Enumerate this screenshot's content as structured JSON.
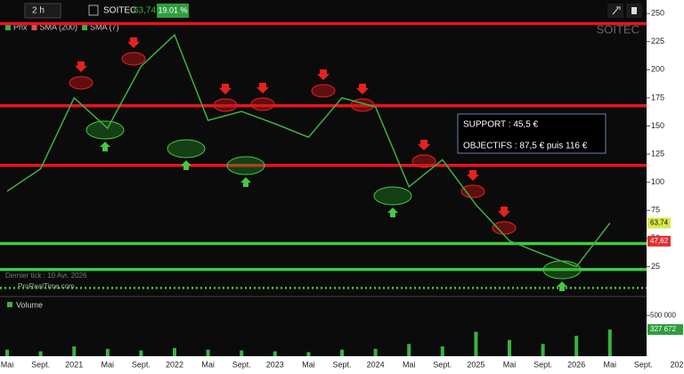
{
  "chart_data": {
    "type": "line",
    "toolbar": {
      "timeframe": "2 h",
      "symbol": "SOITEC",
      "price": "63,74",
      "change": "19.01 %"
    },
    "watermark": "SOITEC",
    "categories": [
      "Mai",
      "Sept.",
      "2021",
      "Mai",
      "Sept.",
      "2022",
      "Mai",
      "Sept.",
      "2023",
      "Mai",
      "Sept.",
      "2024",
      "Mai",
      "Sept.",
      "2025",
      "Mai",
      "Sept.",
      "2026",
      "Mai",
      "Sept.",
      "202"
    ],
    "series": [
      {
        "name": "Prix",
        "color": "#3cb043",
        "values": [
          92,
          112,
          175,
          148,
          203,
          231,
          155,
          163,
          152,
          140,
          175,
          167,
          96,
          120,
          80,
          48,
          36,
          25,
          63.74,
          null,
          null
        ]
      }
    ],
    "indicators": [
      {
        "name": "SMA (200)",
        "color": "#e05050"
      },
      {
        "name": "SMA (7)",
        "color": "#3cb043"
      }
    ],
    "ylim": [
      0,
      262
    ],
    "yticks": [
      250,
      225,
      200,
      175,
      150,
      125,
      100,
      75,
      50,
      25
    ],
    "levels": [
      {
        "value": 241,
        "color": "#e8141c"
      },
      {
        "value": 168,
        "color": "#e8141c"
      },
      {
        "value": 115,
        "color": "#e8141c"
      },
      {
        "value": 45.5,
        "color": "#45c845"
      },
      {
        "value": 22.5,
        "color": "#45c845"
      },
      {
        "value": 6,
        "color": "#45c845",
        "dotted": true
      }
    ],
    "price_labels": [
      {
        "value": 63.74,
        "label": "63,74",
        "color": "#d8e84a"
      },
      {
        "value": 47.62,
        "label": "47,62",
        "color": "#e03030"
      }
    ],
    "annotation": [
      "SUPPORT : 45,5 €",
      "OBJECTIFS : 87,5 € puis 116 €"
    ],
    "footer_text": [
      "Dernier tick : 10 Avr. 2026",
      "ProRealTime.com"
    ],
    "volume": {
      "name": "Volume",
      "color": "#3cb043",
      "values": [
        80000,
        60000,
        120000,
        90000,
        70000,
        100000,
        80000,
        70000,
        60000,
        50000,
        80000,
        90000,
        150000,
        120000,
        300000,
        200000,
        150000,
        250000,
        327672,
        null,
        null
      ],
      "ylim": [
        0,
        700000
      ],
      "yticks": [
        {
          "value": 500000,
          "label": "500 000"
        }
      ],
      "last": {
        "value": 327672,
        "label": "327 672"
      }
    }
  }
}
